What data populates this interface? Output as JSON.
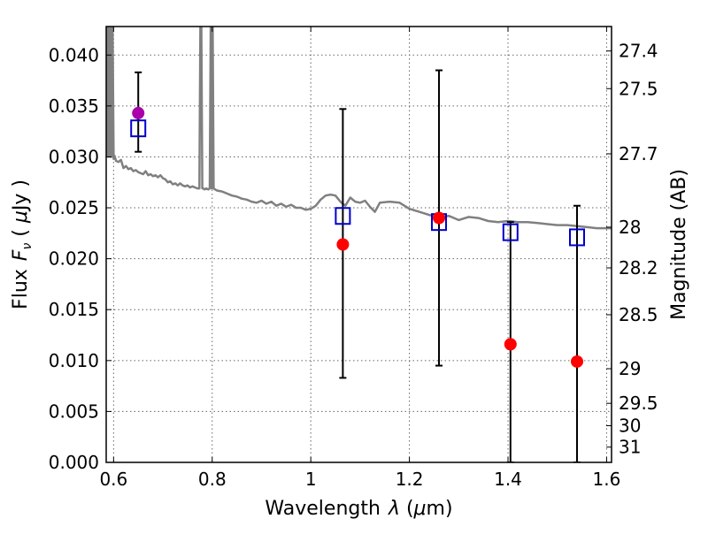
{
  "chart_data": {
    "type": "scatter",
    "xlabel": "Wavelength",
    "xlabel_symbol": "λ",
    "xlabel_unit_open": " (",
    "xlabel_unit_symbol": "μ",
    "xlabel_unit_rest": "m)",
    "ylabel": "Flux",
    "ylabel_symbol_main": "F",
    "ylabel_symbol_sub": "ν",
    "ylabel_unit_open": " ( ",
    "ylabel_unit_symbol": "μ",
    "ylabel_unit_rest": "Jy )",
    "y2label": "Magnitude (AB)",
    "xlim": [
      0.585,
      1.61
    ],
    "ylim": [
      0.0,
      0.0428
    ],
    "grid": true,
    "x_ticks": [
      {
        "value": 0.6,
        "label": "0.6"
      },
      {
        "value": 0.8,
        "label": "0.8"
      },
      {
        "value": 1.0,
        "label": "1"
      },
      {
        "value": 1.2,
        "label": "1.2"
      },
      {
        "value": 1.4,
        "label": "1.4"
      },
      {
        "value": 1.6,
        "label": "1.6"
      }
    ],
    "y_ticks": [
      {
        "value": 0.0,
        "label": "0.000"
      },
      {
        "value": 0.005,
        "label": "0.005"
      },
      {
        "value": 0.01,
        "label": "0.010"
      },
      {
        "value": 0.015,
        "label": "0.015"
      },
      {
        "value": 0.02,
        "label": "0.020"
      },
      {
        "value": 0.025,
        "label": "0.025"
      },
      {
        "value": 0.03,
        "label": "0.030"
      },
      {
        "value": 0.035,
        "label": "0.035"
      },
      {
        "value": 0.04,
        "label": "0.040"
      }
    ],
    "y2_ticks": [
      {
        "flux": 0.0404,
        "label": "27.4"
      },
      {
        "flux": 0.0367,
        "label": "27.5"
      },
      {
        "flux": 0.0303,
        "label": "27.7"
      },
      {
        "flux": 0.0231,
        "label": "28"
      },
      {
        "flux": 0.0191,
        "label": "28.2"
      },
      {
        "flux": 0.0145,
        "label": "28.5"
      },
      {
        "flux": 0.0092,
        "label": "29"
      },
      {
        "flux": 0.0058,
        "label": "29.5"
      },
      {
        "flux": 0.0036,
        "label": "30"
      },
      {
        "flux": 0.0015,
        "label": "31"
      }
    ],
    "model_spectrum": {
      "color": "#808080",
      "x": [
        0.585,
        0.587,
        0.589,
        0.591,
        0.593,
        0.594,
        0.596,
        0.598,
        0.6,
        0.602,
        0.605,
        0.61,
        0.615,
        0.62,
        0.625,
        0.63,
        0.635,
        0.64,
        0.645,
        0.65,
        0.655,
        0.66,
        0.665,
        0.67,
        0.675,
        0.68,
        0.685,
        0.69,
        0.695,
        0.7,
        0.705,
        0.71,
        0.715,
        0.72,
        0.725,
        0.73,
        0.735,
        0.74,
        0.745,
        0.75,
        0.755,
        0.76,
        0.765,
        0.77,
        0.774,
        0.776,
        0.778,
        0.78,
        0.782,
        0.784,
        0.788,
        0.792,
        0.795,
        0.797,
        0.799,
        0.801,
        0.803,
        0.806,
        0.81,
        0.82,
        0.83,
        0.84,
        0.85,
        0.86,
        0.87,
        0.88,
        0.89,
        0.9,
        0.91,
        0.92,
        0.93,
        0.94,
        0.95,
        0.96,
        0.97,
        0.98,
        0.99,
        1.0,
        1.01,
        1.02,
        1.03,
        1.04,
        1.05,
        1.06,
        1.07,
        1.08,
        1.09,
        1.1,
        1.11,
        1.12,
        1.13,
        1.14,
        1.16,
        1.18,
        1.2,
        1.22,
        1.24,
        1.26,
        1.28,
        1.3,
        1.32,
        1.34,
        1.36,
        1.38,
        1.4,
        1.42,
        1.44,
        1.46,
        1.48,
        1.5,
        1.52,
        1.54,
        1.56,
        1.58,
        1.61
      ],
      "y": [
        0.03,
        0.0428,
        0.03,
        0.0428,
        0.03,
        0.0428,
        0.03,
        0.0428,
        0.0298,
        0.0301,
        0.0296,
        0.0295,
        0.0297,
        0.0289,
        0.0291,
        0.0288,
        0.0289,
        0.0286,
        0.0287,
        0.0285,
        0.0284,
        0.0283,
        0.0286,
        0.0282,
        0.0283,
        0.0281,
        0.0282,
        0.028,
        0.0282,
        0.0279,
        0.0278,
        0.0275,
        0.0276,
        0.0273,
        0.0274,
        0.0272,
        0.0274,
        0.0272,
        0.0271,
        0.0272,
        0.027,
        0.0271,
        0.027,
        0.0269,
        0.0269,
        0.0428,
        0.0428,
        0.0269,
        0.0269,
        0.0268,
        0.0269,
        0.0268,
        0.0269,
        0.0428,
        0.0269,
        0.0428,
        0.0269,
        0.0268,
        0.0267,
        0.0266,
        0.0264,
        0.0262,
        0.0261,
        0.0259,
        0.0258,
        0.0256,
        0.0255,
        0.0257,
        0.0254,
        0.0256,
        0.0252,
        0.0254,
        0.0251,
        0.0253,
        0.025,
        0.025,
        0.0248,
        0.0249,
        0.0252,
        0.0258,
        0.0262,
        0.0263,
        0.0262,
        0.0256,
        0.0252,
        0.026,
        0.0256,
        0.0255,
        0.0257,
        0.0251,
        0.0246,
        0.0255,
        0.0256,
        0.0255,
        0.0249,
        0.0246,
        0.0243,
        0.0241,
        0.0242,
        0.0238,
        0.0241,
        0.024,
        0.0237,
        0.0236,
        0.0237,
        0.0236,
        0.0236,
        0.0235,
        0.0234,
        0.0233,
        0.0233,
        0.0232,
        0.0231,
        0.023,
        0.023
      ]
    },
    "model_photometry": {
      "marker": "open-square",
      "color": "#0000cc",
      "x": [
        0.65,
        1.065,
        1.26,
        1.405,
        1.54
      ],
      "y": [
        0.0328,
        0.0242,
        0.0236,
        0.0226,
        0.0221
      ]
    },
    "observed": {
      "marker": "filled-circle",
      "x": [
        0.65,
        1.065,
        1.26,
        1.405,
        1.54
      ],
      "y": [
        0.0343,
        0.0214,
        0.024,
        0.0116,
        0.0099
      ],
      "yerr_low": [
        0.0305,
        0.0083,
        0.0095,
        0.0,
        0.0
      ],
      "yerr_high": [
        0.0383,
        0.0347,
        0.0385,
        0.0236,
        0.0252
      ],
      "colors": [
        "#aa00aa",
        "#ff0000",
        "#ff0000",
        "#ff0000",
        "#ff0000"
      ]
    }
  }
}
